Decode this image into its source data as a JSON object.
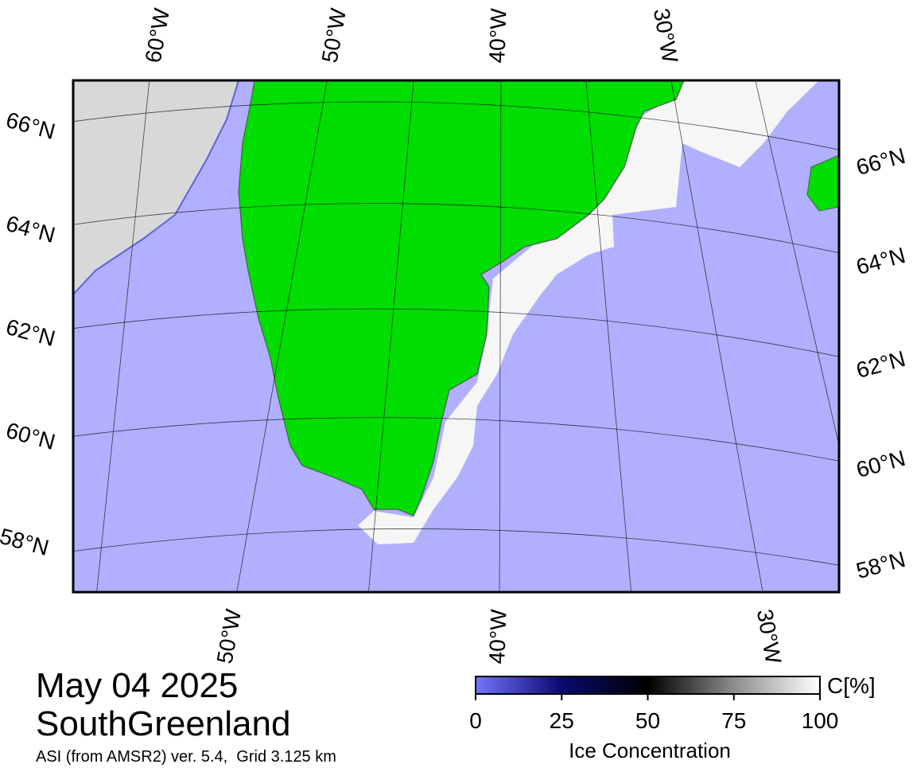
{
  "map": {
    "top_labels": [
      "60°W",
      "50°W",
      "40°W",
      "30°W"
    ],
    "bottom_labels": [
      "50°W",
      "40°W",
      "30°W"
    ],
    "left_labels": [
      "66°N",
      "64°N",
      "62°N",
      "60°N",
      "58°N"
    ],
    "right_labels": [
      "66°N",
      "64°N",
      "62°N",
      "60°N",
      "58°N"
    ]
  },
  "date": "May 04 2025",
  "region": "SouthGreenland",
  "subtitle": "ASI (from AMSR2) ver. 5.4,  Grid 3.125 km",
  "colorbar": {
    "label": "Ice Concentration",
    "unit": "C[%]",
    "lim": [
      0,
      100
    ],
    "ticks": [
      0,
      25,
      50,
      75,
      100
    ]
  }
}
